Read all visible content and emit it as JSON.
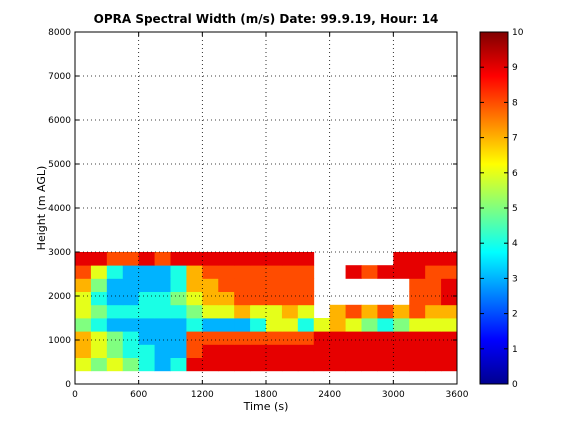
{
  "chart_data": {
    "type": "heatmap",
    "title": "OPRA Spectral Width (m/s)  Date: 99.9.19, Hour: 14",
    "xlabel": "Time (s)",
    "ylabel": "Height (m AGL)",
    "xlim": [
      0,
      3600
    ],
    "ylim": [
      0,
      8000
    ],
    "xticks": [
      0,
      600,
      1200,
      1800,
      2400,
      3000,
      3600
    ],
    "yticks": [
      0,
      1000,
      2000,
      3000,
      4000,
      5000,
      6000,
      7000,
      8000
    ],
    "grid": true,
    "colormap": "jet",
    "colorbar": {
      "range": [
        0,
        10
      ],
      "ticks": [
        0,
        1,
        2,
        3,
        4,
        5,
        6,
        7,
        8,
        9,
        10
      ]
    },
    "data_extent": {
      "time": [
        0,
        3600
      ],
      "height": [
        300,
        3000
      ]
    },
    "time_bins": [
      0,
      150,
      300,
      450,
      600,
      750,
      900,
      1050,
      1200,
      1350,
      1500,
      1650,
      1800,
      1950,
      2100,
      2250,
      2400,
      2550,
      2700,
      2850,
      3000,
      3150,
      3300,
      3450,
      3600
    ],
    "height_bins": [
      300,
      600,
      900,
      1200,
      1500,
      1800,
      2100,
      2400,
      2700,
      3000
    ],
    "values_by_height": [
      [
        6,
        5,
        6,
        5,
        4,
        3,
        4,
        9,
        9,
        9,
        9,
        9,
        9,
        9,
        9,
        9,
        9,
        9,
        9,
        9,
        9,
        9,
        9,
        9
      ],
      [
        7,
        6,
        5,
        4,
        4,
        3,
        3,
        8,
        9,
        9,
        9,
        9,
        9,
        9,
        9,
        9,
        9,
        9,
        9,
        9,
        9,
        9,
        9,
        9
      ],
      [
        7,
        6,
        5,
        4,
        3,
        3,
        3,
        8,
        8,
        8,
        8,
        8,
        8,
        8,
        8,
        9,
        9,
        9,
        9,
        9,
        9,
        9,
        9,
        9
      ],
      [
        5,
        4,
        3,
        3,
        3,
        3,
        3,
        4,
        3,
        3,
        3,
        4,
        6,
        6,
        4,
        6,
        7,
        6,
        5,
        4,
        5,
        6,
        6,
        6
      ],
      [
        6,
        5,
        4,
        4,
        4,
        4,
        4,
        5,
        6,
        6,
        7,
        6,
        6,
        7,
        6,
        null,
        7,
        8,
        7,
        8,
        7,
        8,
        7,
        7
      ],
      [
        6,
        4,
        3,
        3,
        4,
        4,
        5,
        6,
        7,
        7,
        8,
        8,
        8,
        8,
        8,
        null,
        null,
        null,
        null,
        null,
        null,
        8,
        8,
        9
      ],
      [
        7,
        5,
        3,
        3,
        3,
        3,
        4,
        7,
        7,
        8,
        8,
        8,
        8,
        8,
        8,
        null,
        null,
        null,
        null,
        null,
        null,
        8,
        8,
        9
      ],
      [
        8,
        6,
        4,
        3,
        3,
        3,
        4,
        7,
        8,
        8,
        8,
        8,
        8,
        8,
        8,
        null,
        null,
        9,
        8,
        9,
        9,
        9,
        8,
        8
      ],
      [
        9,
        9,
        8,
        8,
        9,
        8,
        9,
        9,
        9,
        9,
        9,
        9,
        9,
        9,
        9,
        null,
        null,
        null,
        null,
        null,
        9,
        9,
        9,
        9
      ]
    ]
  }
}
